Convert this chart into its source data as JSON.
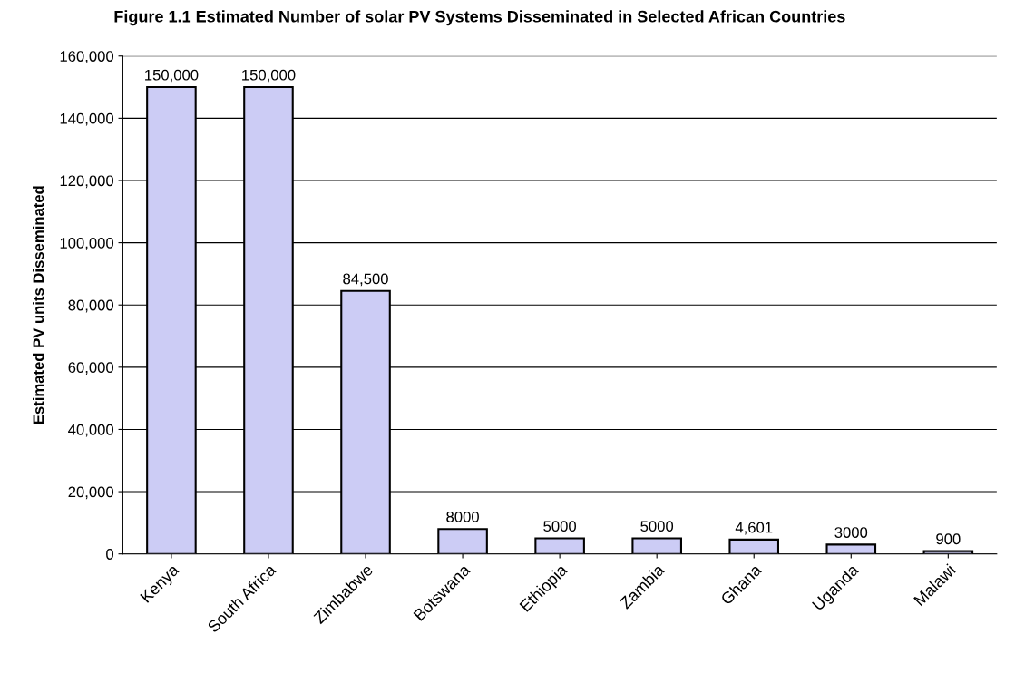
{
  "chart_data": {
    "type": "bar",
    "title": "Figure 1.1 Estimated Number of solar PV Systems Disseminated in Selected African Countries",
    "ylabel": "Estimated PV units Disseminated",
    "categories": [
      "Kenya",
      "South Africa",
      "Zimbabwe",
      "Botswana",
      "Ethiopia",
      "Zambia",
      "Ghana",
      "Uganda",
      "Malawi"
    ],
    "values": [
      150000,
      150000,
      84500,
      8000,
      5000,
      5000,
      4601,
      3000,
      900
    ],
    "value_labels": [
      "150,000",
      "150,000",
      "84,500",
      "8000",
      "5000",
      "5000",
      "4,601",
      "3000",
      "900"
    ],
    "color": "#ccccf5",
    "ylim": [
      0,
      160000
    ],
    "yticks": [
      0,
      {
        "value": 20000,
        "label": "20,000"
      },
      {
        "value": 40000,
        "label": "40,000"
      },
      {
        "value": 60000,
        "label": "60,000"
      },
      {
        "value": 80000,
        "label": "80,000"
      },
      {
        "value": 100000,
        "label": "100,000"
      },
      {
        "value": 120000,
        "label": "120,000"
      },
      {
        "value": 140000,
        "label": "140,000"
      },
      {
        "value": 160000,
        "label": "160,000"
      }
    ],
    "grid": "y",
    "legend": false
  }
}
